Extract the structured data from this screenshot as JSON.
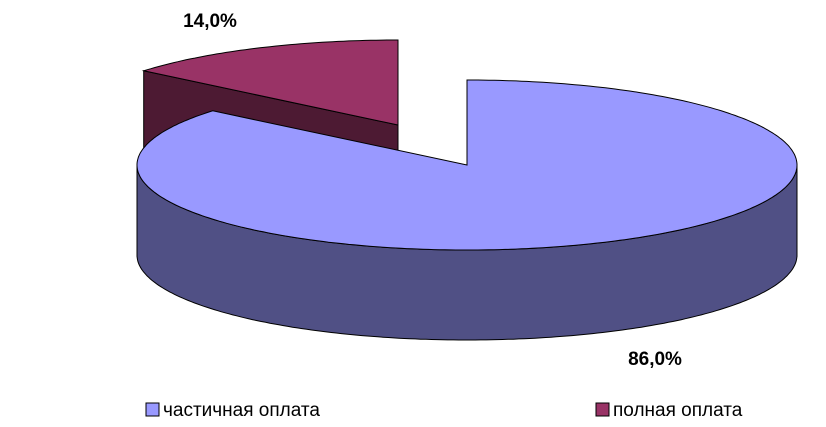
{
  "chart_data": {
    "type": "pie3d",
    "categories": [
      "частичная оплата",
      "полная оплата"
    ],
    "values": [
      86,
      14
    ],
    "value_labels": [
      "86,0%",
      "14,0%"
    ],
    "colors": [
      "#9999ff",
      "#993366"
    ],
    "legend": "bottom"
  }
}
